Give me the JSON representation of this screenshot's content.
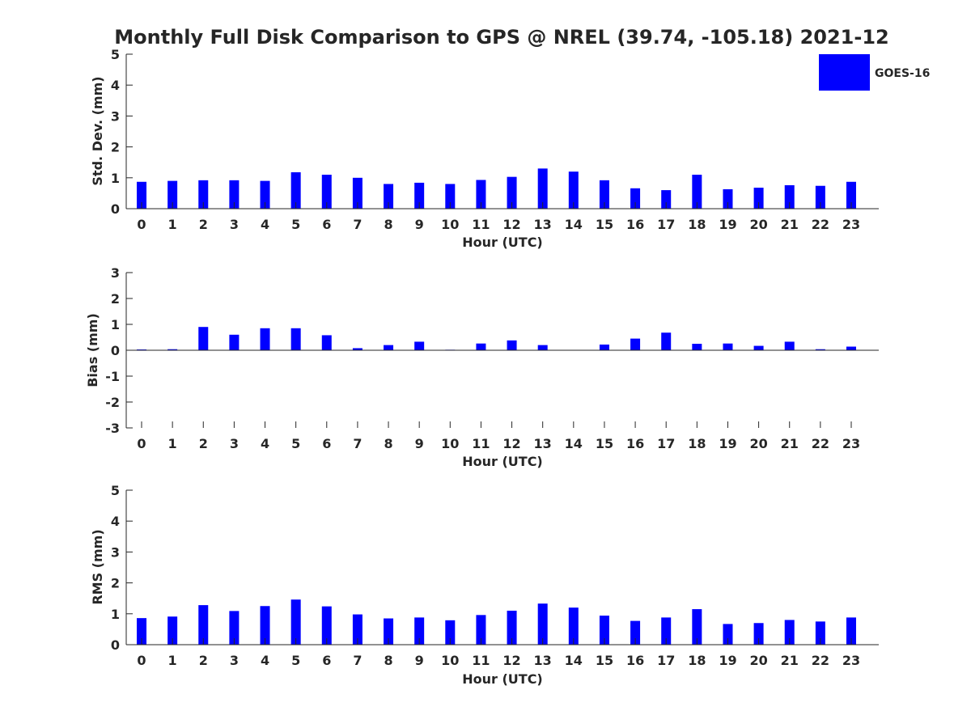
{
  "title": "Monthly Full Disk Comparison to GPS @ NREL (39.74, -105.18) 2021-12",
  "legend": {
    "label": "GOES-16",
    "color": "#0000ff",
    "placement": "top-right"
  },
  "chart_data": [
    {
      "type": "bar",
      "xlabel": "Hour (UTC)",
      "ylabel": "Std. Dev. (mm)",
      "ylim": [
        0,
        5
      ],
      "yticks": [
        "0",
        "1",
        "2",
        "3",
        "4",
        "5"
      ],
      "categories": [
        "0",
        "1",
        "2",
        "3",
        "4",
        "5",
        "6",
        "7",
        "8",
        "9",
        "10",
        "11",
        "12",
        "13",
        "14",
        "15",
        "16",
        "17",
        "18",
        "19",
        "20",
        "21",
        "22",
        "23"
      ],
      "series": [
        {
          "name": "GOES-16",
          "color": "#0000ff",
          "values": [
            0.87,
            0.9,
            0.92,
            0.92,
            0.9,
            1.18,
            1.1,
            1.0,
            0.8,
            0.84,
            0.8,
            0.93,
            1.03,
            1.3,
            1.2,
            0.92,
            0.66,
            0.6,
            1.1,
            0.63,
            0.68,
            0.76,
            0.74,
            0.87
          ]
        }
      ]
    },
    {
      "type": "bar",
      "xlabel": "Hour (UTC)",
      "ylabel": "Bias (mm)",
      "ylim": [
        -3,
        3
      ],
      "yticks": [
        "-3",
        "-2",
        "-1",
        "0",
        "1",
        "2",
        "3"
      ],
      "categories": [
        "0",
        "1",
        "2",
        "3",
        "4",
        "5",
        "6",
        "7",
        "8",
        "9",
        "10",
        "11",
        "12",
        "13",
        "14",
        "15",
        "16",
        "17",
        "18",
        "19",
        "20",
        "21",
        "22",
        "23"
      ],
      "series": [
        {
          "name": "GOES-16",
          "color": "#0000ff",
          "values": [
            0.03,
            0.04,
            0.9,
            0.6,
            0.85,
            0.85,
            0.58,
            0.08,
            0.2,
            0.33,
            0.02,
            0.26,
            0.38,
            0.2,
            0.0,
            0.22,
            0.45,
            0.68,
            0.25,
            0.26,
            0.17,
            0.33,
            0.04,
            0.14
          ]
        }
      ]
    },
    {
      "type": "bar",
      "xlabel": "Hour (UTC)",
      "ylabel": "RMS (mm)",
      "ylim": [
        0,
        5
      ],
      "yticks": [
        "0",
        "1",
        "2",
        "3",
        "4",
        "5"
      ],
      "categories": [
        "0",
        "1",
        "2",
        "3",
        "4",
        "5",
        "6",
        "7",
        "8",
        "9",
        "10",
        "11",
        "12",
        "13",
        "14",
        "15",
        "16",
        "17",
        "18",
        "19",
        "20",
        "21",
        "22",
        "23"
      ],
      "series": [
        {
          "name": "GOES-16",
          "color": "#0000ff",
          "values": [
            0.86,
            0.91,
            1.28,
            1.09,
            1.25,
            1.46,
            1.24,
            0.98,
            0.85,
            0.88,
            0.79,
            0.96,
            1.1,
            1.33,
            1.2,
            0.94,
            0.77,
            0.88,
            1.15,
            0.67,
            0.7,
            0.8,
            0.75,
            0.88
          ]
        }
      ]
    }
  ]
}
